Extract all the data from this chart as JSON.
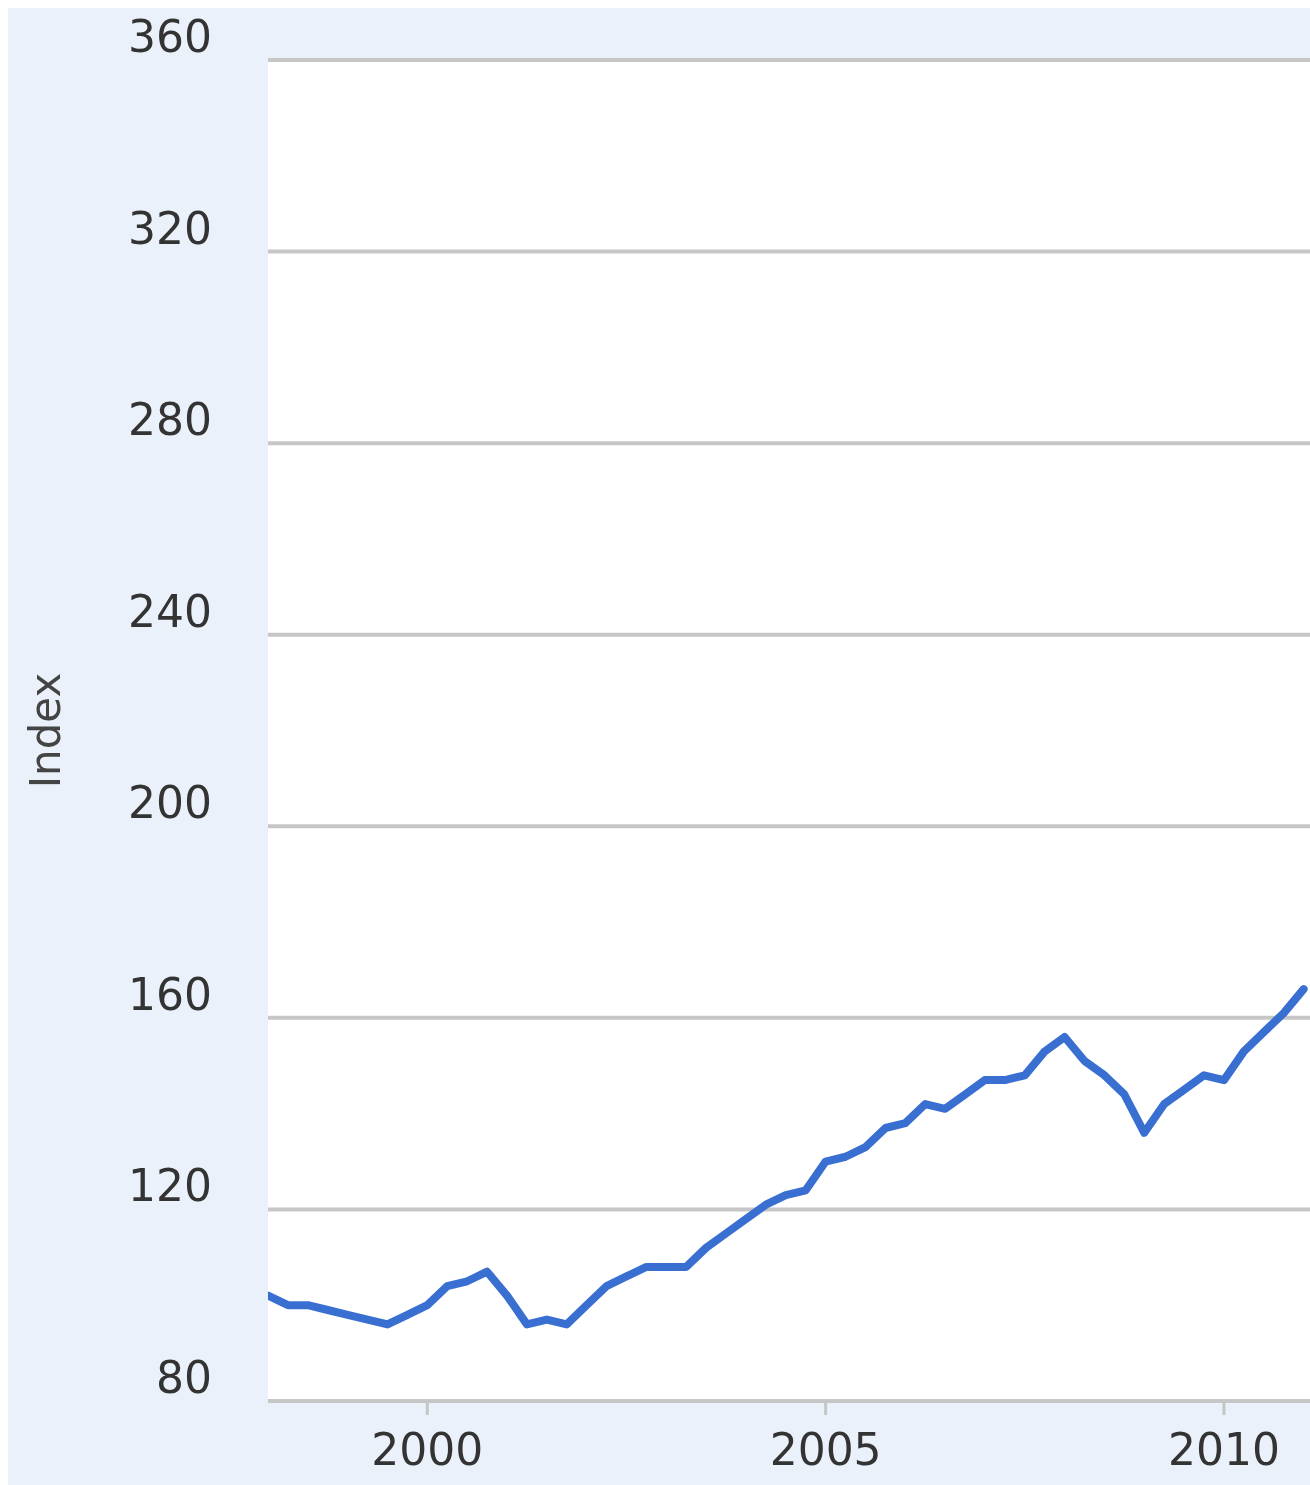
{
  "chart_data": {
    "type": "line",
    "ylabel": "Index",
    "x": [
      1998,
      1998.25,
      1998.5,
      1998.75,
      1999,
      1999.25,
      1999.5,
      1999.75,
      2000,
      2000.25,
      2000.5,
      2000.75,
      2001,
      2001.25,
      2001.5,
      2001.75,
      2002,
      2002.25,
      2002.5,
      2002.75,
      2003,
      2003.25,
      2003.5,
      2003.75,
      2004,
      2004.25,
      2004.5,
      2004.75,
      2005,
      2005.25,
      2005.5,
      2005.75,
      2006,
      2006.25,
      2006.5,
      2006.75,
      2007,
      2007.25,
      2007.5,
      2007.75,
      2008,
      2008.25,
      2008.5,
      2008.75,
      2009,
      2009.25,
      2009.5,
      2009.75,
      2010,
      2010.25,
      2010.5,
      2010.75,
      2011
    ],
    "series": [
      {
        "color": "#3a6fd2",
        "values": [
          102,
          100,
          100,
          99,
          98,
          97,
          96,
          98,
          100,
          104,
          105,
          107,
          102,
          96,
          97,
          96,
          100,
          104,
          106,
          108,
          108,
          108,
          112,
          115,
          118,
          121,
          123,
          124,
          130,
          131,
          133,
          137,
          138,
          142,
          141,
          144,
          147,
          147,
          148,
          153,
          156,
          151,
          148,
          144,
          136,
          142,
          145,
          148,
          147,
          153,
          157,
          161,
          166
        ]
      }
    ],
    "xlim": [
      1998,
      2011.08
    ],
    "xticks": [
      2000,
      2005,
      2010
    ],
    "ylim": [
      80,
      360
    ],
    "yticks": [
      80,
      120,
      160,
      200,
      240,
      280,
      320,
      360
    ],
    "grid": "y",
    "marker": "none",
    "line_style": "solid"
  }
}
